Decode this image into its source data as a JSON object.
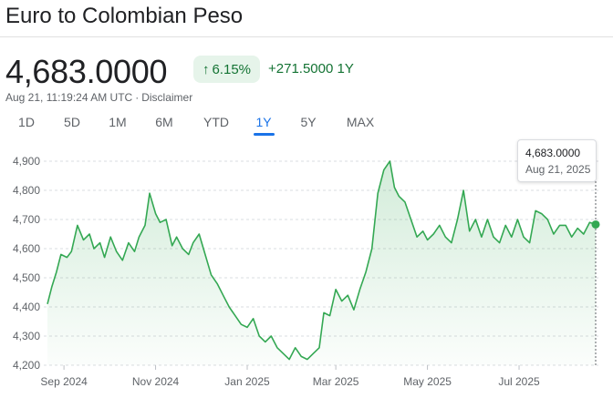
{
  "title": "Euro to Colombian Peso",
  "price": "4,683.0000",
  "change": {
    "percent": "6.15%",
    "absolute": "+271.5000",
    "period": "1Y",
    "direction": "up"
  },
  "meta": {
    "timestamp": "Aug 21, 11:19:24 AM UTC",
    "disclaimer": "Disclaimer"
  },
  "tabs": [
    {
      "label": "1D",
      "active": false
    },
    {
      "label": "5D",
      "active": false
    },
    {
      "label": "1M",
      "active": false
    },
    {
      "label": "6M",
      "active": false
    },
    {
      "label": "YTD",
      "active": false
    },
    {
      "label": "1Y",
      "active": true
    },
    {
      "label": "5Y",
      "active": false
    },
    {
      "label": "MAX",
      "active": false
    }
  ],
  "tooltip": {
    "value": "4,683.0000",
    "date": "Aug 21, 2025"
  },
  "colors": {
    "up": "#137333",
    "line": "#34a853",
    "accent": "#1a73e8"
  },
  "chart_data": {
    "type": "area",
    "yticks": [
      "4,900",
      "4,800",
      "4,700",
      "4,600",
      "4,500",
      "4,400",
      "4,300",
      "4,200"
    ],
    "ylim": [
      4200,
      4900
    ],
    "xticks": [
      {
        "label": "Sep 2024",
        "x": "2024-09-01"
      },
      {
        "label": "Nov 2024",
        "x": "2024-11-01"
      },
      {
        "label": "Jan 2025",
        "x": "2025-01-01"
      },
      {
        "label": "Mar 2025",
        "x": "2025-03-01"
      },
      {
        "label": "May 2025",
        "x": "2025-05-01"
      },
      {
        "label": "Jul 2025",
        "x": "2025-07-01"
      }
    ],
    "xrange": [
      "2024-08-21",
      "2025-08-21"
    ],
    "grid": true,
    "series": [
      {
        "x": [
          "2024-08-21",
          "2024-08-24",
          "2024-08-27",
          "2024-08-30",
          "2024-09-03",
          "2024-09-06",
          "2024-09-10",
          "2024-09-14",
          "2024-09-18",
          "2024-09-21",
          "2024-09-25",
          "2024-09-28",
          "2024-10-02",
          "2024-10-06",
          "2024-10-10",
          "2024-10-14",
          "2024-10-18",
          "2024-10-21",
          "2024-10-25",
          "2024-10-28",
          "2024-11-01",
          "2024-11-04",
          "2024-11-08",
          "2024-11-12",
          "2024-11-15",
          "2024-11-19",
          "2024-11-23",
          "2024-11-26",
          "2024-11-30",
          "2024-12-04",
          "2024-12-08",
          "2024-12-12",
          "2024-12-16",
          "2024-12-20",
          "2024-12-24",
          "2024-12-28",
          "2025-01-01",
          "2025-01-05",
          "2025-01-09",
          "2025-01-13",
          "2025-01-17",
          "2025-01-21",
          "2025-01-25",
          "2025-01-29",
          "2025-02-02",
          "2025-02-06",
          "2025-02-10",
          "2025-02-14",
          "2025-02-18",
          "2025-02-21",
          "2025-02-25",
          "2025-03-01",
          "2025-03-05",
          "2025-03-09",
          "2025-03-13",
          "2025-03-17",
          "2025-03-21",
          "2025-03-25",
          "2025-03-29",
          "2025-04-02",
          "2025-04-06",
          "2025-04-09",
          "2025-04-12",
          "2025-04-16",
          "2025-04-20",
          "2025-04-24",
          "2025-04-28",
          "2025-05-01",
          "2025-05-05",
          "2025-05-09",
          "2025-05-13",
          "2025-05-17",
          "2025-05-21",
          "2025-05-25",
          "2025-05-29",
          "2025-06-02",
          "2025-06-06",
          "2025-06-10",
          "2025-06-14",
          "2025-06-18",
          "2025-06-22",
          "2025-06-26",
          "2025-06-30",
          "2025-07-04",
          "2025-07-08",
          "2025-07-12",
          "2025-07-16",
          "2025-07-20",
          "2025-07-24",
          "2025-07-28",
          "2025-08-01",
          "2025-08-05",
          "2025-08-09",
          "2025-08-13",
          "2025-08-17",
          "2025-08-21"
        ],
        "values": [
          4410,
          4470,
          4520,
          4580,
          4570,
          4590,
          4680,
          4630,
          4650,
          4600,
          4620,
          4570,
          4640,
          4590,
          4560,
          4620,
          4590,
          4640,
          4680,
          4790,
          4720,
          4690,
          4700,
          4610,
          4640,
          4600,
          4580,
          4620,
          4650,
          4580,
          4510,
          4480,
          4440,
          4400,
          4370,
          4340,
          4330,
          4360,
          4300,
          4280,
          4300,
          4260,
          4240,
          4220,
          4260,
          4230,
          4220,
          4240,
          4260,
          4380,
          4370,
          4460,
          4420,
          4440,
          4390,
          4460,
          4520,
          4600,
          4790,
          4870,
          4900,
          4810,
          4780,
          4760,
          4700,
          4640,
          4660,
          4630,
          4650,
          4680,
          4640,
          4620,
          4700,
          4800,
          4660,
          4700,
          4640,
          4700,
          4640,
          4620,
          4680,
          4640,
          4700,
          4640,
          4620,
          4730,
          4720,
          4700,
          4650,
          4680,
          4680,
          4640,
          4670,
          4650,
          4690,
          4683
        ]
      }
    ]
  }
}
